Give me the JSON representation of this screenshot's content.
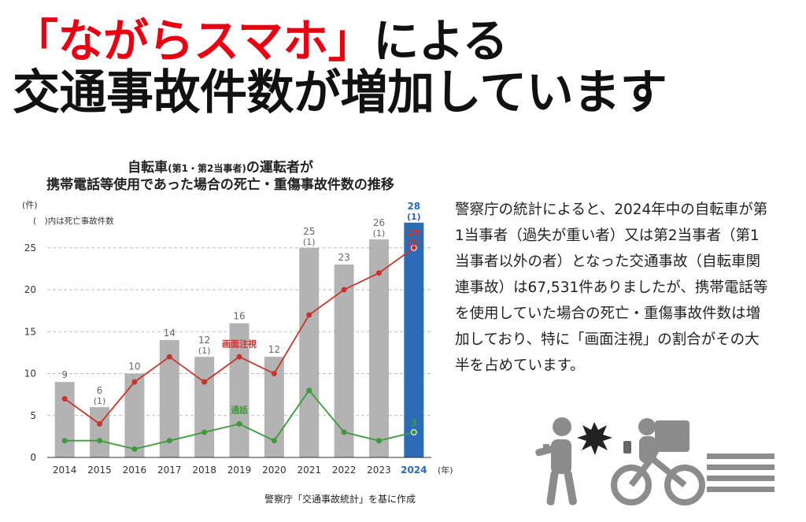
{
  "headline": {
    "line1_red": "「ながらスマホ」",
    "line1_black": "による",
    "line2": "交通事故件数が増加しています"
  },
  "chart_title": {
    "part1": "自転車",
    "part2": "(第1・第2当事者)",
    "part3": "の運転者が",
    "line2": "携帯電話等使用であった場合の死亡・重傷事故件数の推移"
  },
  "description": "警察庁の統計によると、2024年中の自転車が第1当事者（過失が重い者）又は第2当事者（第1当事者以外の者）となった交通事故（自転車関連事故）は67,531件ありましたが、携帯電話等を使用していた場合の死亡・重傷事故件数は増加しており、特に「画面注視」の割合がその大半を占めています。",
  "source": "警察庁「交通事故統計」を基に作成",
  "colors": {
    "red": "#e60012",
    "bar": "#b3b3b3",
    "highlight_bar": "#2c6bb5",
    "line_red": "#c8342c",
    "line_green": "#3d9a3a"
  },
  "illustration": {
    "icons": [
      "walking-phone-person-icon",
      "collision-burst-icon",
      "delivery-cyclist-icon",
      "speed-lines-icon"
    ]
  },
  "chart_data": {
    "type": "bar",
    "yunit": "(件)",
    "xunit": "(年)",
    "note": "(　)内は死亡事故件数",
    "categories": [
      "2014",
      "2015",
      "2016",
      "2017",
      "2018",
      "2019",
      "2020",
      "2021",
      "2022",
      "2023",
      "2024"
    ],
    "ylim": [
      0,
      28
    ],
    "yticks": [
      0,
      5,
      10,
      15,
      20,
      25
    ],
    "grid": true,
    "highlight_category": "2024",
    "series": [
      {
        "name": "total",
        "values": [
          9,
          6,
          10,
          14,
          12,
          16,
          12,
          25,
          23,
          26,
          28
        ],
        "fatal": [
          "",
          "(1)",
          "",
          "",
          "(1)",
          "",
          "",
          "(1)",
          "",
          "(1)",
          "(1)"
        ]
      }
    ],
    "lines": [
      {
        "name": "画面注視",
        "values": [
          7,
          4,
          9,
          12,
          9,
          12,
          10,
          17,
          20,
          22,
          25
        ],
        "last_label": "25",
        "last_fatal": "(1)"
      },
      {
        "name": "通話",
        "values": [
          2,
          2,
          1,
          2,
          3,
          4,
          2,
          8,
          3,
          2,
          3
        ],
        "last_label": "3"
      }
    ]
  }
}
